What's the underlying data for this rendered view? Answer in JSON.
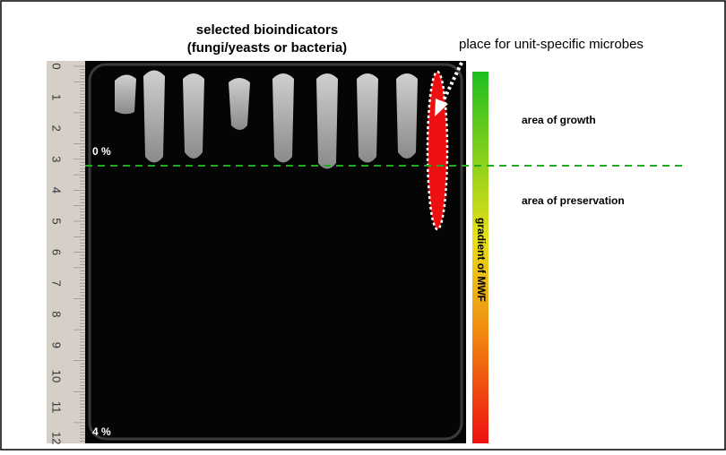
{
  "title_lines": [
    "selected bioindicators",
    "(fungi/yeasts or bacteria)"
  ],
  "microbes_label": "place for unit-specific microbes",
  "growth_label": "area of growth",
  "preservation_label": "area of preservation",
  "gradient_label": "gradient of MWF",
  "top_percent": "0 %",
  "bottom_percent": "4 %",
  "ruler_labels": [
    "0",
    "1",
    "2",
    "3",
    "4",
    "5",
    "6",
    "7",
    "8",
    "9",
    "10",
    "11",
    "12"
  ]
}
